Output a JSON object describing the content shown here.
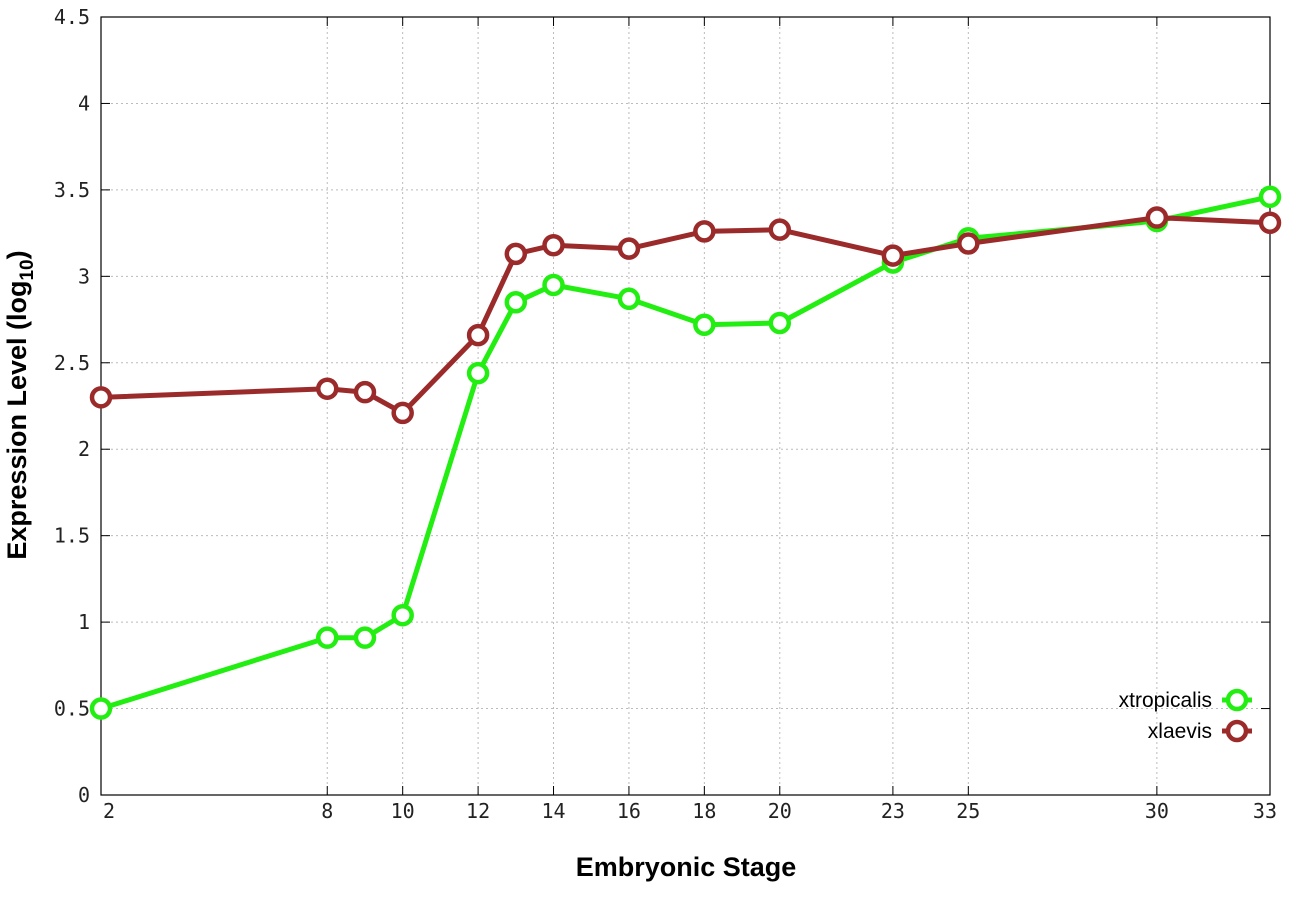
{
  "chart_data": {
    "type": "line",
    "xlabel": "Embryonic Stage",
    "ylabel_main": "Expression Level (log",
    "ylabel_sub": "10",
    "ylabel_close": ")",
    "xlim": [
      2,
      33
    ],
    "ylim": [
      0,
      4.5
    ],
    "x_ticks": [
      2,
      8,
      10,
      12,
      14,
      16,
      18,
      20,
      23,
      25,
      30,
      33
    ],
    "x_tick_labels": [
      "2",
      "8",
      "10",
      "12",
      "14",
      "16",
      "18",
      "20",
      "23",
      "25",
      "30",
      "33"
    ],
    "y_ticks": [
      0,
      0.5,
      1,
      1.5,
      2,
      2.5,
      3,
      3.5,
      4,
      4.5
    ],
    "y_tick_labels": [
      "0",
      "0.5",
      "1",
      "1.5",
      "2",
      "2.5",
      "3",
      "3.5",
      "4",
      "4.5"
    ],
    "grid": true,
    "legend_position": "bottom-right",
    "x": [
      2,
      8,
      9,
      10,
      12,
      13,
      14,
      16,
      18,
      20,
      23,
      25,
      30,
      33
    ],
    "series": [
      {
        "name": "xtropicalis",
        "color": "#22ee11",
        "values": [
          0.5,
          0.91,
          0.91,
          1.04,
          2.44,
          2.85,
          2.95,
          2.87,
          2.72,
          2.73,
          3.08,
          3.22,
          3.32,
          3.46
        ]
      },
      {
        "name": "xlaevis",
        "color": "#9b2a2a",
        "values": [
          2.3,
          2.35,
          2.33,
          2.21,
          2.66,
          3.13,
          3.18,
          3.16,
          3.26,
          3.27,
          3.12,
          3.19,
          3.34,
          3.31
        ]
      }
    ]
  }
}
